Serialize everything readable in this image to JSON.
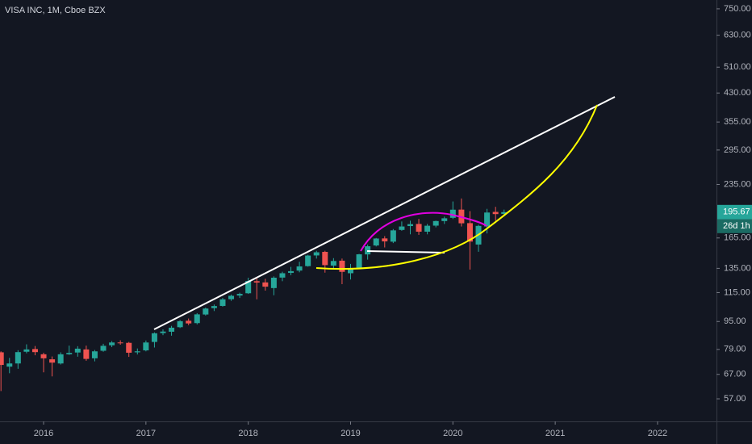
{
  "chart_data": {
    "type": "candlestick",
    "title": "VISA INC, 1M, Cboe BZX",
    "log_scale": true,
    "grid": false,
    "up_color": "#26a69a",
    "down_color": "#ef5350",
    "open": [
      77.5,
      70.5,
      72.0,
      77.8,
      79.2,
      76.5,
      74.0,
      72.0,
      76.5,
      77.4,
      79.0,
      74.5,
      78.3,
      81.2,
      82.7,
      82.5,
      77.5,
      78.5,
      83.0,
      88.0,
      88.8,
      91.5,
      95.5,
      94.0,
      99.5,
      103.8,
      105.3,
      110.1,
      112.8,
      114.5,
      124.0,
      123.0,
      118.5,
      127.0,
      131.0,
      133.0,
      137.0,
      147.0,
      150.5,
      137.5,
      142.0,
      130.7,
      135.5,
      148.0,
      157.0,
      164.5,
      161.0,
      174.0,
      178.5,
      181.0,
      172.0,
      179.0,
      184.5,
      188.5,
      199.0,
      182.0,
      158.0,
      178.0,
      196.0,
      193.5
    ],
    "high": [
      78.0,
      74.7,
      78.6,
      81.7,
      80.8,
      77.3,
      75.4,
      77.5,
      81.0,
      80.7,
      81.0,
      78.7,
      82.0,
      83.5,
      83.9,
      83.0,
      79.5,
      83.8,
      88.4,
      90.2,
      92.3,
      95.9,
      96.9,
      100.4,
      104.2,
      106.3,
      111.0,
      113.5,
      114.9,
      126.9,
      126.5,
      126.0,
      128.0,
      132.0,
      136.3,
      141.0,
      147.6,
      151.6,
      151.6,
      144.4,
      144.0,
      139.0,
      148.5,
      158.0,
      165.0,
      167.0,
      175.0,
      184.0,
      185.0,
      187.1,
      181.0,
      185.0,
      190.0,
      210.0,
      214.2,
      197.0,
      180.0,
      200.0,
      202.7,
      199.0
    ],
    "low": [
      60.0,
      67.5,
      69.5,
      77.0,
      76.0,
      67.9,
      66.1,
      71.5,
      76.2,
      75.3,
      73.3,
      73.0,
      77.8,
      80.2,
      81.5,
      75.2,
      76.4,
      78.0,
      80.0,
      86.8,
      86.5,
      91.0,
      92.7,
      93.2,
      98.8,
      101.8,
      104.8,
      108.9,
      111.0,
      114.0,
      110.0,
      116.5,
      113.0,
      124.0,
      129.0,
      131.5,
      136.5,
      144.0,
      131.2,
      134.8,
      121.6,
      125.4,
      134.5,
      143.0,
      156.0,
      155.0,
      159.5,
      173.0,
      169.0,
      168.4,
      169.0,
      177.0,
      181.0,
      187.0,
      178.0,
      133.9,
      150.6,
      170.0,
      185.0,
      190.5
    ],
    "close": [
      71.3,
      72.0,
      77.6,
      79.0,
      77.6,
      74.5,
      72.4,
      76.5,
      77.2,
      79.4,
      74.2,
      78.0,
      80.9,
      82.7,
      82.5,
      77.3,
      78.0,
      82.7,
      87.9,
      88.9,
      91.2,
      95.2,
      93.8,
      99.6,
      103.5,
      105.2,
      110.0,
      112.6,
      114.0,
      124.2,
      122.9,
      119.6,
      126.9,
      130.7,
      132.5,
      136.7,
      146.9,
      150.1,
      137.9,
      141.7,
      131.9,
      135.0,
      148.1,
      156.2,
      164.4,
      161.3,
      173.5,
      178.0,
      180.8,
      172.0,
      178.9,
      184.5,
      187.9,
      198.9,
      181.8,
      161.1,
      178.7,
      195.2,
      193.2,
      195.67
    ],
    "ylim": [
      49.1,
      795
    ],
    "yticks": [
      {
        "value": 750,
        "label": "750.00"
      },
      {
        "value": 630,
        "label": "630.00"
      },
      {
        "value": 510,
        "label": "510.00"
      },
      {
        "value": 430,
        "label": "430.00"
      },
      {
        "value": 355,
        "label": "355.00"
      },
      {
        "value": 295,
        "label": "295.00"
      },
      {
        "value": 235,
        "label": "235.00"
      },
      {
        "value": 165,
        "label": "165.00"
      },
      {
        "value": 135,
        "label": "135.00"
      },
      {
        "value": 115,
        "label": "115.00"
      },
      {
        "value": 95,
        "label": "95.00"
      },
      {
        "value": 79,
        "label": "79.00"
      },
      {
        "value": 67,
        "label": "67.00"
      },
      {
        "value": 57,
        "label": "57.00"
      }
    ],
    "xlim": [
      2015.574,
      2022.576
    ],
    "xticks": [
      2016,
      2017,
      2018,
      2019,
      2020,
      2021,
      2022
    ],
    "last_price": 195.67,
    "countdown": "26d 1h"
  }
}
